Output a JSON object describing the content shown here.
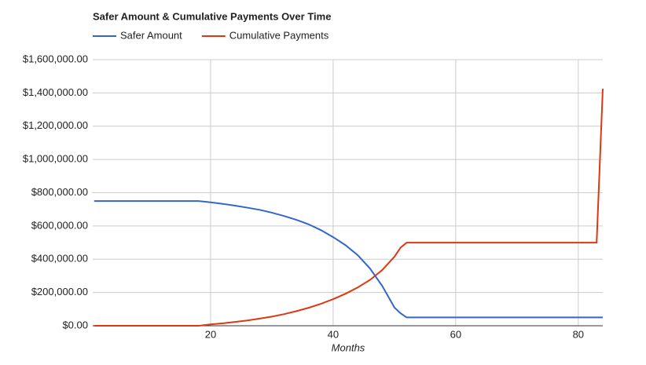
{
  "chart_data": {
    "type": "line",
    "title": "Safer Amount & Cumulative Payments Over Time",
    "x_label": "Months",
    "x": [
      1,
      18,
      20,
      22,
      24,
      26,
      28,
      30,
      32,
      34,
      36,
      38,
      40,
      42,
      44,
      46,
      48,
      50,
      51,
      52,
      60,
      70,
      83,
      84
    ],
    "series": [
      {
        "name": "Safer Amount",
        "color": "#3366cc",
        "values": [
          750000,
          750000,
          742000,
          733000,
          722000,
          710000,
          697000,
          680000,
          660000,
          637000,
          610000,
          575000,
          533000,
          485000,
          425000,
          345000,
          240000,
          110000,
          75000,
          50000,
          50000,
          50000,
          50000,
          50000
        ]
      },
      {
        "name": "Cumulative Payments",
        "color": "#dc3912",
        "values": [
          0,
          0,
          8000,
          15000,
          23000,
          32000,
          43000,
          55000,
          70000,
          88000,
          108000,
          132000,
          160000,
          192000,
          230000,
          275000,
          335000,
          415000,
          470000,
          500000,
          500000,
          500000,
          500000,
          1425000
        ]
      }
    ],
    "xlim": [
      1,
      84
    ],
    "xticks": [
      20,
      40,
      60,
      80
    ],
    "ylim": [
      0,
      1600000
    ],
    "yticks": [
      {
        "value": 0,
        "label": "$0.00"
      },
      {
        "value": 200000,
        "label": "$200,000.00"
      },
      {
        "value": 400000,
        "label": "$400,000.00"
      },
      {
        "value": 600000,
        "label": "$600,000.00"
      },
      {
        "value": 800000,
        "label": "$800,000.00"
      },
      {
        "value": 1000000,
        "label": "$1,000,000.00"
      },
      {
        "value": 1200000,
        "label": "$1,200,000.00"
      },
      {
        "value": 1400000,
        "label": "$1,400,000.00"
      },
      {
        "value": 1600000,
        "label": "$1,600,000.00"
      }
    ],
    "grid": true,
    "legend": "top"
  }
}
